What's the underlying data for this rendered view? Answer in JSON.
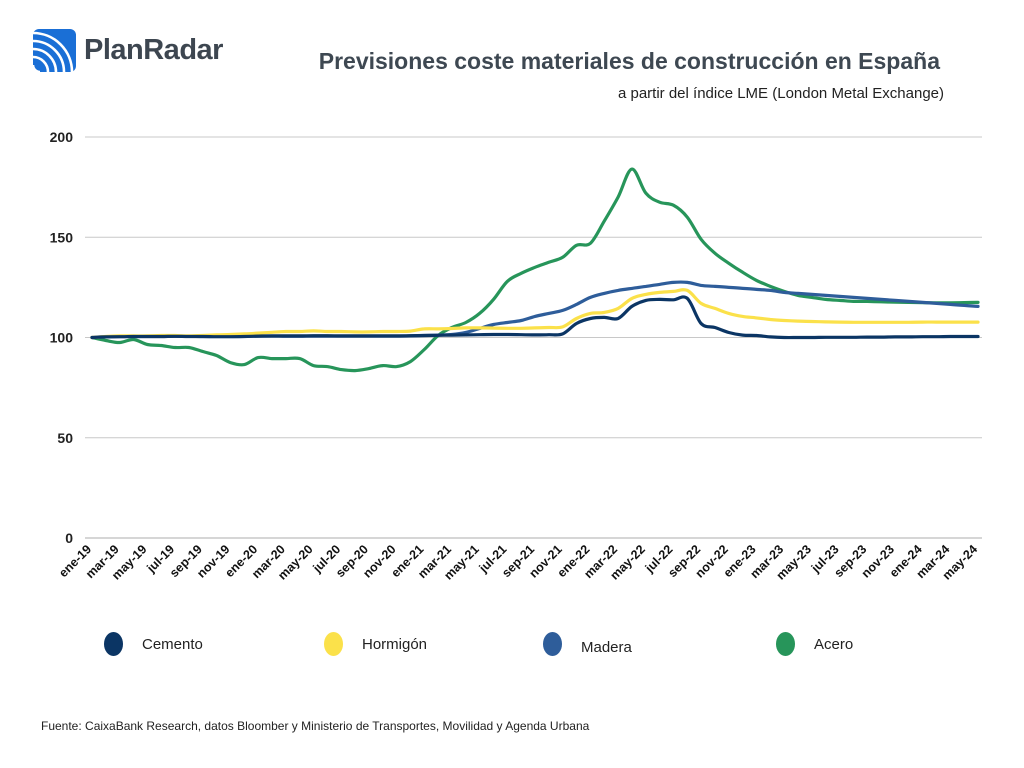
{
  "header": {
    "logo_text": "PlanRadar",
    "title": "Previsiones coste materiales de construcción en España",
    "subtitle": "a partir del índice LME (London Metal Exchange)"
  },
  "colors": {
    "logo_blue": "#1a6fd6",
    "cemento": "#0b3564",
    "hormigon": "#fbe14a",
    "madera": "#2e5d9a",
    "acero": "#27955a",
    "grid": "#c8c8c8"
  },
  "chart_data": {
    "type": "line",
    "title": "Previsiones coste materiales de construcción en España",
    "subtitle": "a partir del índice LME (London Metal Exchange)",
    "xlabel": "",
    "ylabel": "",
    "ylim": [
      0,
      200
    ],
    "yticks": [
      0,
      50,
      100,
      150,
      200
    ],
    "grid": true,
    "legend_position": "bottom",
    "x": [
      "ene-19",
      "feb-19",
      "mar-19",
      "abr-19",
      "may-19",
      "jun-19",
      "jul-19",
      "ago-19",
      "sep-19",
      "oct-19",
      "nov-19",
      "dic-19",
      "ene-20",
      "feb-20",
      "mar-20",
      "abr-20",
      "may-20",
      "jun-20",
      "jul-20",
      "ago-20",
      "sep-20",
      "oct-20",
      "nov-20",
      "dic-20",
      "ene-21",
      "feb-21",
      "mar-21",
      "abr-21",
      "may-21",
      "jun-21",
      "jul-21",
      "ago-21",
      "sep-21",
      "oct-21",
      "nov-21",
      "dic-21",
      "ene-22",
      "feb-22",
      "mar-22",
      "abr-22",
      "may-22",
      "jun-22",
      "jul-22",
      "ago-22",
      "sep-22",
      "oct-22",
      "nov-22",
      "dic-22",
      "ene-23",
      "feb-23",
      "mar-23",
      "abr-23",
      "may-23",
      "jun-23",
      "jul-23",
      "ago-23",
      "sep-23",
      "oct-23",
      "nov-23",
      "dic-23",
      "ene-24",
      "feb-24",
      "mar-24",
      "abr-24",
      "may-24"
    ],
    "xtick_labels": [
      "ene-19",
      "mar-19",
      "may-19",
      "jul-19",
      "sep-19",
      "nov-19",
      "ene-20",
      "mar-20",
      "may-20",
      "jul-20",
      "sep-20",
      "nov-20",
      "ene-21",
      "mar-21",
      "may-21",
      "jul-21",
      "sep-21",
      "nov-21",
      "ene-22",
      "mar-22",
      "may-22",
      "jul-22",
      "sep-22",
      "nov-22",
      "ene-23",
      "mar-23",
      "may-23",
      "jul-23",
      "sep-23",
      "nov-23",
      "ene-24",
      "mar-24",
      "may-24"
    ],
    "series": [
      {
        "name": "Cemento",
        "color": "#0b3564",
        "values": [
          100,
          100.3,
          100.4,
          100.5,
          100.5,
          100.5,
          100.6,
          100.5,
          100.5,
          100.4,
          100.4,
          100.5,
          100.7,
          100.8,
          100.8,
          100.8,
          100.9,
          100.9,
          100.8,
          100.8,
          100.8,
          100.8,
          100.8,
          100.9,
          101,
          101.1,
          101.2,
          101.3,
          101.4,
          101.5,
          101.5,
          101.4,
          101.3,
          101.4,
          101.8,
          107,
          109.5,
          110,
          109.5,
          115.5,
          118.5,
          119,
          118.8,
          119.5,
          107,
          105,
          102.5,
          101.2,
          101,
          100.3,
          100,
          100,
          100,
          100.1,
          100.1,
          100.1,
          100.2,
          100.2,
          100.3,
          100.3,
          100.4,
          100.4,
          100.5,
          100.5,
          100.5
        ]
      },
      {
        "name": "Hormigón",
        "color": "#fbe14a",
        "values": [
          100,
          100.5,
          100.8,
          100.8,
          100.8,
          101,
          101,
          100.8,
          101,
          101.3,
          101.5,
          101.8,
          102.2,
          102.6,
          103,
          103,
          103.3,
          103,
          103,
          102.8,
          102.8,
          103,
          103,
          103.2,
          104.3,
          104.3,
          104.5,
          104.8,
          104.8,
          104.7,
          104.6,
          104.6,
          104.8,
          105,
          105.3,
          109.5,
          112,
          112.5,
          114.5,
          119.5,
          121.5,
          122.5,
          123,
          123.5,
          117,
          114.5,
          112,
          110.5,
          109.8,
          109,
          108.5,
          108.2,
          108,
          107.8,
          107.7,
          107.6,
          107.6,
          107.6,
          107.6,
          107.6,
          107.7,
          107.7,
          107.7,
          107.7,
          107.7
        ]
      },
      {
        "name": "Madera",
        "color": "#2e5d9a",
        "values": [
          100,
          100.3,
          100.4,
          100.5,
          100.5,
          100.5,
          100.6,
          100.6,
          100.5,
          100.5,
          100.5,
          100.6,
          100.7,
          100.7,
          100.6,
          100.6,
          100.7,
          100.7,
          100.7,
          100.7,
          100.7,
          100.7,
          100.7,
          100.8,
          101,
          101.2,
          101.5,
          102.5,
          104.5,
          106.5,
          107.5,
          108.5,
          110.5,
          112,
          113.5,
          116.5,
          120,
          122,
          123.5,
          124.5,
          125.5,
          126.5,
          127.5,
          127.5,
          126,
          125.5,
          125,
          124.5,
          124,
          123.5,
          122.5,
          122,
          121.5,
          121,
          120.5,
          120,
          119.5,
          119,
          118.5,
          118,
          117.5,
          117,
          116.5,
          116,
          115.5
        ]
      },
      {
        "name": "Acero",
        "color": "#27955a",
        "values": [
          100,
          98.5,
          97.5,
          99,
          96.5,
          96,
          95,
          95,
          93,
          91,
          87.5,
          86.5,
          90,
          89.5,
          89.5,
          89.5,
          86,
          85.5,
          84,
          83.5,
          84.5,
          86,
          85.5,
          88,
          94,
          101,
          105,
          107.5,
          112,
          119,
          128,
          132,
          135,
          137.5,
          140,
          146,
          147,
          158,
          170,
          184,
          172,
          167.5,
          166,
          160,
          149,
          142,
          137,
          132.5,
          128.5,
          125.5,
          123,
          121,
          120,
          119,
          118.5,
          118,
          118,
          117.8,
          117.6,
          117.5,
          117.4,
          117.3,
          117.3,
          117.4,
          117.5
        ]
      }
    ]
  },
  "legend": [
    {
      "label": "Cemento",
      "color": "#0b3564"
    },
    {
      "label": "Hormigón",
      "color": "#fbe14a"
    },
    {
      "label": "Madera",
      "color": "#2e5d9a"
    },
    {
      "label": "Acero",
      "color": "#27955a"
    }
  ],
  "footer": {
    "source": "Fuente: CaixaBank Research, datos Bloomber y Ministerio de Transportes, Movilidad y Agenda Urbana"
  }
}
